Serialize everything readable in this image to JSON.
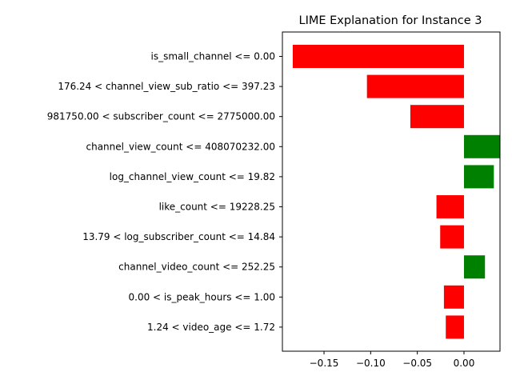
{
  "chart_data": {
    "type": "bar",
    "orientation": "horizontal",
    "title": "LIME Explanation for Instance 3",
    "xlabel": "",
    "ylabel": "",
    "categories": [
      "is_small_channel <= 0.00",
      "176.24 < channel_view_sub_ratio <= 397.23",
      "981750.00 < subscriber_count <= 2775000.00",
      "channel_view_count <= 408070232.00",
      "log_channel_view_count <= 19.82",
      "like_count <= 19228.25",
      "13.79 < log_subscriber_count <= 14.84",
      "channel_video_count <= 252.25",
      "0.00 < is_peak_hours <= 1.00",
      "1.24 < video_age <= 1.72"
    ],
    "values": [
      -0.1835,
      -0.104,
      -0.0575,
      0.0385,
      0.032,
      -0.0295,
      -0.0255,
      0.0225,
      -0.0215,
      -0.0195
    ],
    "xlim": [
      -0.1946,
      0.0386
    ],
    "xticks": [
      -0.15,
      -0.1,
      -0.05,
      0.0
    ],
    "xtick_labels": [
      "−0.15",
      "−0.10",
      "−0.05",
      "0.00"
    ],
    "positive_color": "#008000",
    "negative_color": "#ff0000",
    "grid": false,
    "legend": "none"
  }
}
